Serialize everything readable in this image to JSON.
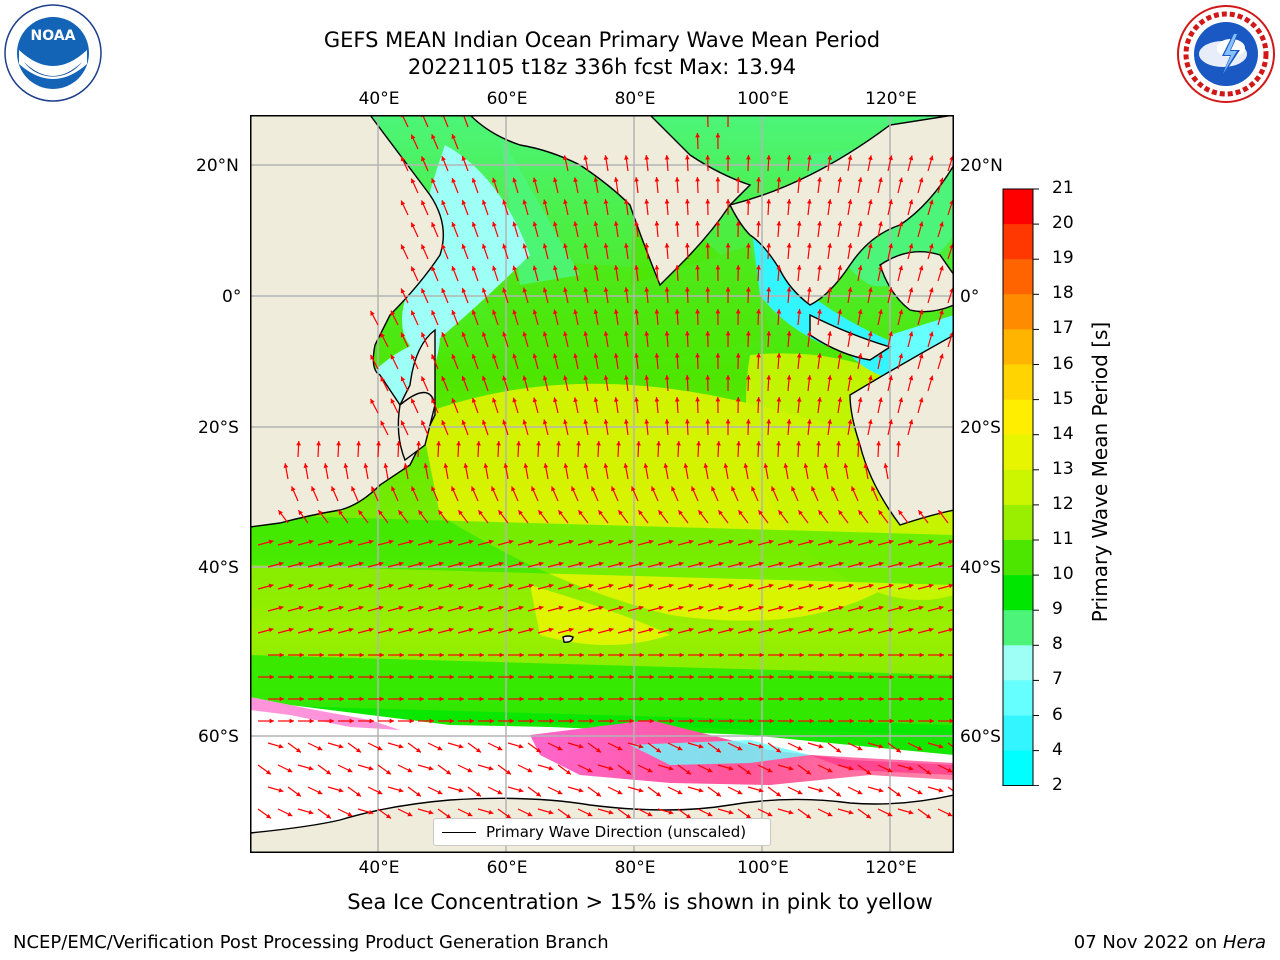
{
  "header": {
    "title_line1": "GEFS MEAN Indian Ocean Primary Wave Mean Period",
    "title_line2": "20221105 t18z 336h fcst   Max: 13.94"
  },
  "logos": {
    "left": {
      "icon": "noaa-logo",
      "text": "NOAA",
      "ring_text": "NATIONAL OCEANIC AND ATMOSPHERIC ADMINISTRATION · U.S. DEPARTMENT OF COMMERCE"
    },
    "right": {
      "icon": "nws-logo",
      "ring_text": "NATIONAL WEATHER SERVICE"
    }
  },
  "map": {
    "lon_labels_top": [
      "40°E",
      "60°E",
      "80°E",
      "100°E",
      "120°E"
    ],
    "lon_labels_bottom": [
      "40°E",
      "60°E",
      "80°E",
      "100°E",
      "120°E"
    ],
    "lat_labels_left": [
      "20°N",
      "0°",
      "20°S",
      "40°S",
      "60°S"
    ],
    "lat_labels_right": [
      "20°N",
      "0°",
      "20°S",
      "40°S",
      "60°S"
    ],
    "extent": {
      "lon_min": 20,
      "lon_max": 130,
      "lat_min": -72,
      "lat_max": 28
    },
    "legend_label": "Primary Wave Direction (unscaled)",
    "colors": {
      "land": "#efecdc",
      "ice": "#ffffff",
      "arrows": "#ff0000",
      "grid": "#b4b4b4"
    }
  },
  "colorbar": {
    "title": "Primary Wave Mean Period [s]",
    "tick_labels": [
      "2",
      "4",
      "6",
      "7",
      "8",
      "9",
      "10",
      "11",
      "12",
      "13",
      "14",
      "15",
      "16",
      "17",
      "18",
      "19",
      "20",
      "21"
    ],
    "levels": [
      2,
      4,
      6,
      7,
      8,
      9,
      10,
      11,
      12,
      13,
      14,
      15,
      16,
      17,
      18,
      19,
      20,
      21
    ],
    "colors": [
      "#0077ff",
      "#00ffff",
      "#33f5ff",
      "#66ffff",
      "#9dfff6",
      "#4cf57a",
      "#00e600",
      "#4de600",
      "#9aef00",
      "#ccf500",
      "#e7f500",
      "#ffee00",
      "#ffd400",
      "#ffb400",
      "#ff8c00",
      "#ff6400",
      "#ff3700",
      "#ff0000"
    ],
    "extend_color": "#0000ee"
  },
  "annotation": "Sea Ice Concentration > 15% is shown in pink to yellow",
  "footer": {
    "left": "NCEP/EMC/Verification Post Processing Product Generation Branch",
    "right_date": "07 Nov 2022 on ",
    "right_host": "Hera"
  }
}
